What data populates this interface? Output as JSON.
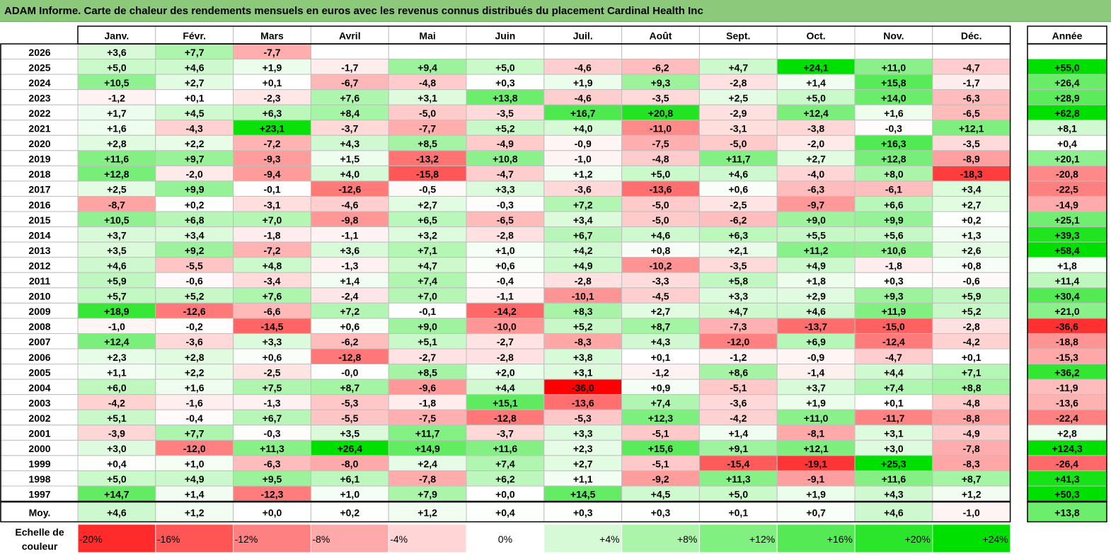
{
  "title": "ADAM Informe. Carte de chaleur des rendements mensuels en euros avec les revenus connus distribués du placement Cardinal Health Inc",
  "chart_data": {
    "type": "heatmap",
    "months": [
      "Janv.",
      "Févr.",
      "Mars",
      "Avril",
      "Mai",
      "Juin",
      "Juil.",
      "Août",
      "Sept.",
      "Oct.",
      "Nov.",
      "Déc."
    ],
    "year_column_label": "Année",
    "average_row_label": "Moy.",
    "rows": [
      {
        "year": "2026",
        "months": [
          "+3,6",
          "+7,7",
          "-7,7",
          "",
          "",
          "",
          "",
          "",
          "",
          "",
          "",
          ""
        ],
        "year_total": ""
      },
      {
        "year": "2025",
        "months": [
          "+5,0",
          "+4,6",
          "+1,9",
          "-1,7",
          "+9,4",
          "+5,0",
          "-4,6",
          "-6,2",
          "+4,7",
          "+24,1",
          "+11,0",
          "-4,7"
        ],
        "year_total": "+55,0"
      },
      {
        "year": "2024",
        "months": [
          "+10,5",
          "+2,7",
          "+0,1",
          "-6,7",
          "-4,8",
          "+0,3",
          "+1,9",
          "+9,3",
          "-2,8",
          "+1,4",
          "+15,8",
          "-1,7"
        ],
        "year_total": "+26,4"
      },
      {
        "year": "2023",
        "months": [
          "-1,2",
          "+0,1",
          "-2,3",
          "+7,6",
          "+3,1",
          "+13,8",
          "-4,6",
          "-3,5",
          "+2,5",
          "+5,0",
          "+14,0",
          "-6,3"
        ],
        "year_total": "+28,9"
      },
      {
        "year": "2022",
        "months": [
          "+1,7",
          "+4,5",
          "+6,3",
          "+8,4",
          "-5,0",
          "-3,5",
          "+16,7",
          "+20,8",
          "-2,9",
          "+12,4",
          "+1,6",
          "-6,5"
        ],
        "year_total": "+62,8"
      },
      {
        "year": "2021",
        "months": [
          "+1,6",
          "-4,3",
          "+23,1",
          "-3,7",
          "-7,7",
          "+5,2",
          "+4,0",
          "-11,0",
          "-3,1",
          "-3,8",
          "-0,3",
          "+12,1"
        ],
        "year_total": "+8,1"
      },
      {
        "year": "2020",
        "months": [
          "+2,8",
          "+2,2",
          "-7,2",
          "+4,3",
          "+8,5",
          "-4,9",
          "-0,9",
          "-7,5",
          "-5,0",
          "-2,0",
          "+16,3",
          "-3,5"
        ],
        "year_total": "+0,4"
      },
      {
        "year": "2019",
        "months": [
          "+11,6",
          "+9,7",
          "-9,3",
          "+1,5",
          "-13,2",
          "+10,8",
          "-1,0",
          "-4,8",
          "+11,7",
          "+2,7",
          "+12,8",
          "-8,9"
        ],
        "year_total": "+20,1"
      },
      {
        "year": "2018",
        "months": [
          "+12,8",
          "-2,0",
          "-9,4",
          "+4,0",
          "-15,8",
          "-4,7",
          "+1,2",
          "+5,0",
          "+4,6",
          "-4,0",
          "+8,0",
          "-18,3"
        ],
        "year_total": "-20,8"
      },
      {
        "year": "2017",
        "months": [
          "+2,5",
          "+9,9",
          "-0,1",
          "-12,6",
          "-0,5",
          "+3,3",
          "-3,6",
          "-13,6",
          "+0,6",
          "-6,3",
          "-6,1",
          "+3,4"
        ],
        "year_total": "-22,5"
      },
      {
        "year": "2016",
        "months": [
          "-8,7",
          "+0,2",
          "-3,1",
          "-4,6",
          "+2,7",
          "-0,3",
          "+7,2",
          "-5,0",
          "-2,5",
          "-9,7",
          "+6,6",
          "+2,7"
        ],
        "year_total": "-14,9"
      },
      {
        "year": "2015",
        "months": [
          "+10,5",
          "+6,8",
          "+7,0",
          "-9,8",
          "+6,5",
          "-6,5",
          "+3,4",
          "-5,0",
          "-6,2",
          "+9,0",
          "+9,9",
          "+0,2"
        ],
        "year_total": "+25,1"
      },
      {
        "year": "2014",
        "months": [
          "+3,7",
          "+3,4",
          "-1,8",
          "-1,1",
          "+3,2",
          "-2,8",
          "+6,7",
          "+4,6",
          "+6,3",
          "+5,5",
          "+5,6",
          "+1,3"
        ],
        "year_total": "+39,3"
      },
      {
        "year": "2013",
        "months": [
          "+3,5",
          "+9,2",
          "-7,2",
          "+3,6",
          "+7,1",
          "+1,0",
          "+4,2",
          "+0,8",
          "+2,1",
          "+11,2",
          "+10,6",
          "+2,6"
        ],
        "year_total": "+58,4"
      },
      {
        "year": "2012",
        "months": [
          "+4,6",
          "-5,5",
          "+4,8",
          "-1,3",
          "+4,7",
          "+0,6",
          "+4,9",
          "-10,2",
          "-3,5",
          "+4,9",
          "-1,8",
          "+0,8"
        ],
        "year_total": "+1,8"
      },
      {
        "year": "2011",
        "months": [
          "+5,9",
          "-0,6",
          "-3,4",
          "+1,4",
          "+7,4",
          "-0,4",
          "-2,8",
          "-3,3",
          "+5,8",
          "+1,8",
          "+0,3",
          "-0,6"
        ],
        "year_total": "+11,4"
      },
      {
        "year": "2010",
        "months": [
          "+5,7",
          "+5,2",
          "+7,6",
          "-2,4",
          "+7,0",
          "-1,1",
          "-10,1",
          "-4,5",
          "+3,3",
          "+2,9",
          "+9,3",
          "+5,9"
        ],
        "year_total": "+30,4"
      },
      {
        "year": "2009",
        "months": [
          "+18,9",
          "-12,6",
          "-6,6",
          "+7,2",
          "-0,1",
          "-14,2",
          "+8,3",
          "+2,7",
          "+4,7",
          "+4,6",
          "+11,9",
          "+5,2"
        ],
        "year_total": "+21,0"
      },
      {
        "year": "2008",
        "months": [
          "-1,0",
          "-0,2",
          "-14,5",
          "+0,6",
          "+9,0",
          "-10,0",
          "+5,2",
          "+8,7",
          "-7,3",
          "-13,7",
          "-15,0",
          "-2,8"
        ],
        "year_total": "-36,6"
      },
      {
        "year": "2007",
        "months": [
          "+12,4",
          "-3,6",
          "+3,3",
          "-6,2",
          "+5,1",
          "-2,7",
          "-8,3",
          "+4,3",
          "-12,0",
          "+6,9",
          "-12,4",
          "-4,2"
        ],
        "year_total": "-18,8"
      },
      {
        "year": "2006",
        "months": [
          "+2,3",
          "+2,8",
          "+0,6",
          "-12,8",
          "-2,7",
          "-2,8",
          "+3,8",
          "+0,1",
          "-1,2",
          "-0,9",
          "-4,7",
          "+0,1"
        ],
        "year_total": "-15,3"
      },
      {
        "year": "2005",
        "months": [
          "+1,1",
          "+2,2",
          "-2,5",
          "-0,0",
          "+8,5",
          "+2,0",
          "+3,1",
          "-1,2",
          "+8,6",
          "-1,4",
          "+4,4",
          "+7,1"
        ],
        "year_total": "+36,2"
      },
      {
        "year": "2004",
        "months": [
          "+6,0",
          "+1,6",
          "+7,5",
          "+8,7",
          "-9,6",
          "+4,4",
          "-36,0",
          "+0,9",
          "-5,1",
          "+3,7",
          "+7,4",
          "+8,8"
        ],
        "year_total": "-11,9"
      },
      {
        "year": "2003",
        "months": [
          "-4,2",
          "-1,6",
          "-1,3",
          "-5,3",
          "-1,8",
          "+15,1",
          "-13,6",
          "+7,4",
          "-3,6",
          "+1,9",
          "+0,1",
          "-4,8"
        ],
        "year_total": "-13,6"
      },
      {
        "year": "2002",
        "months": [
          "+5,1",
          "-0,4",
          "+6,7",
          "-5,5",
          "-7,5",
          "-12,8",
          "-5,3",
          "+12,3",
          "-4,2",
          "+11,0",
          "-11,7",
          "-8,8"
        ],
        "year_total": "-22,4"
      },
      {
        "year": "2001",
        "months": [
          "-3,9",
          "+7,7",
          "-0,3",
          "+3,5",
          "+11,7",
          "-3,7",
          "+3,3",
          "-5,1",
          "+1,4",
          "-8,1",
          "+3,1",
          "-4,9"
        ],
        "year_total": "+2,8"
      },
      {
        "year": "2000",
        "months": [
          "+3,0",
          "-12,0",
          "+11,3",
          "+26,4",
          "+14,9",
          "+11,6",
          "+2,3",
          "+15,6",
          "+9,1",
          "+12,1",
          "+3,0",
          "-7,8"
        ],
        "year_total": "+124,3"
      },
      {
        "year": "1999",
        "months": [
          "+0,4",
          "+1,0",
          "-6,3",
          "-8,0",
          "+2,4",
          "+7,4",
          "+2,7",
          "-5,1",
          "-15,4",
          "-19,1",
          "+25,3",
          "-8,3"
        ],
        "year_total": "-26,4"
      },
      {
        "year": "1998",
        "months": [
          "+5,0",
          "+4,9",
          "+9,5",
          "+6,1",
          "-7,8",
          "+6,2",
          "+1,1",
          "-9,2",
          "+11,3",
          "-9,1",
          "+11,6",
          "+8,7"
        ],
        "year_total": "+41,3"
      },
      {
        "year": "1997",
        "months": [
          "+14,7",
          "+1,4",
          "-12,3",
          "+1,0",
          "+7,9",
          "+0,0",
          "+14,5",
          "+4,5",
          "+5,0",
          "+1,9",
          "+4,3",
          "+1,2"
        ],
        "year_total": "+50,3"
      }
    ],
    "average": {
      "months": [
        "+4,6",
        "+1,2",
        "+0,0",
        "+0,2",
        "+1,2",
        "+0,4",
        "+0,3",
        "+0,3",
        "+0,1",
        "+0,7",
        "+4,6",
        "-1,0"
      ],
      "year_total": "+13,8"
    },
    "color_scale": {
      "label_line1": "Echelle de",
      "label_line2": "couleur",
      "stops": [
        "-20%",
        "-16%",
        "-12%",
        "-8%",
        "-4%",
        "0%",
        "+4%",
        "+8%",
        "+12%",
        "+16%",
        "+20%",
        "+24%"
      ]
    },
    "colors": {
      "max_negative": "#ff0000",
      "neutral": "#ffffff",
      "max_positive": "#00e000",
      "title_bar": "#8cc97a",
      "grid": "#bfbfbf"
    }
  }
}
